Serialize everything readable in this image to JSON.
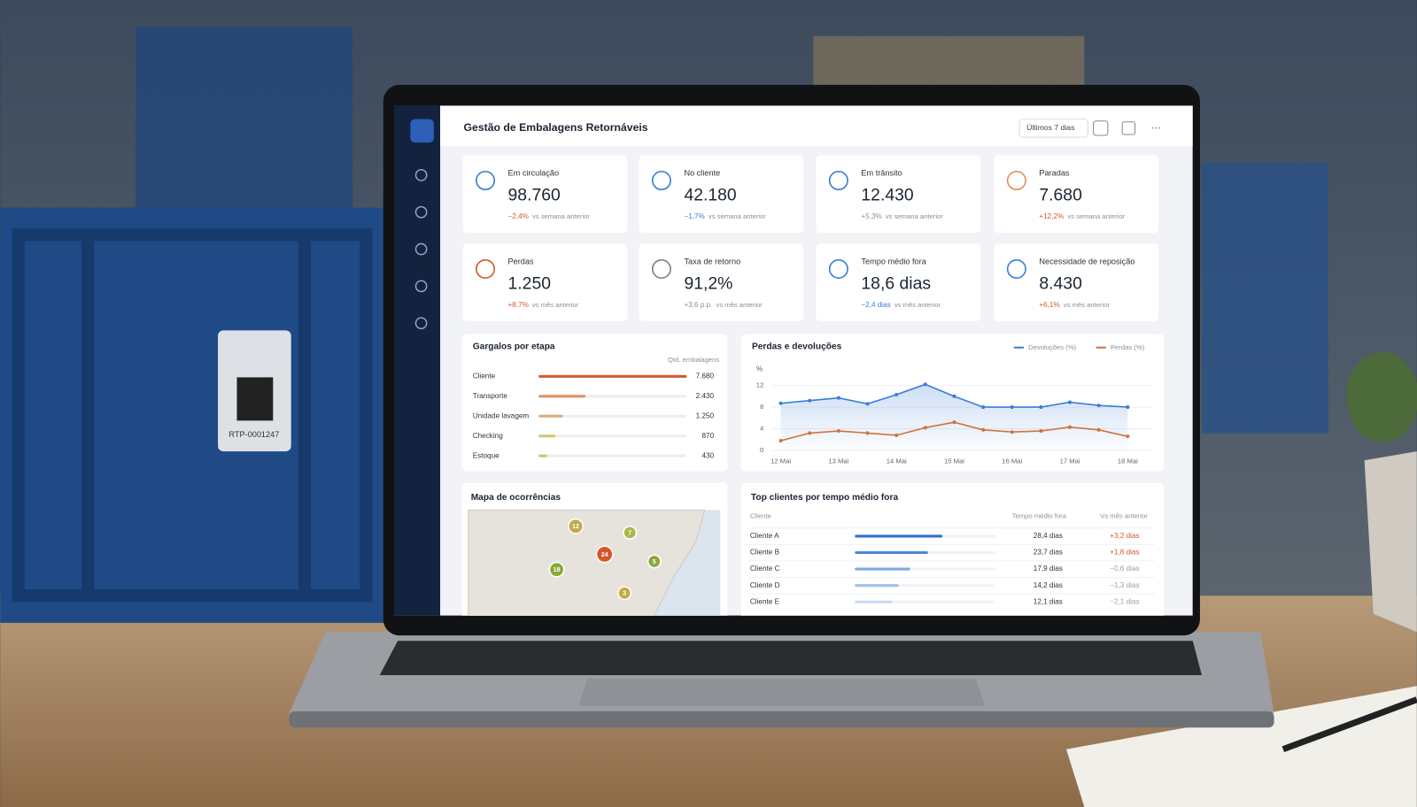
{
  "header": {
    "title": "Gestão de Embalagens Retornáveis",
    "period": "Últimos 7 dias"
  },
  "crate_label": "RTP-0001247",
  "kpis": [
    {
      "label": "Em circulação",
      "value": "98.760",
      "delta": "−2,4%",
      "comparison": "vs semana anterior",
      "color": "#d4572a",
      "icon_color": "#3b7dd8"
    },
    {
      "label": "No cliente",
      "value": "42.180",
      "delta": "−1,7%",
      "comparison": "vs semana anterior",
      "color": "#3b7dd8",
      "icon_color": "#3b7dd8"
    },
    {
      "label": "Em trânsito",
      "value": "12.430",
      "delta": "+5,3%",
      "comparison": "vs semana anterior",
      "color": "#8a8f98",
      "icon_color": "#3b7dd8"
    },
    {
      "label": "Paradas",
      "value": "7.680",
      "delta": "+12,2%",
      "comparison": "vs semana anterior",
      "color": "#d4572a",
      "icon_color": "#e0915f"
    },
    {
      "label": "Perdas",
      "value": "1.250",
      "delta": "+8,7%",
      "comparison": "vs mês anterior",
      "color": "#d4572a",
      "icon_color": "#d4572a"
    },
    {
      "label": "Taxa de retorno",
      "value": "91,2%",
      "delta": "+3,6 p.p.",
      "comparison": "vs mês anterior",
      "color": "#8a8f98",
      "icon_color": "#7a808a"
    },
    {
      "label": "Tempo médio fora",
      "value": "18,6 dias",
      "delta": "−2,4 dias",
      "comparison": "vs mês anterior",
      "color": "#3b7dd8",
      "icon_color": "#3b7dd8"
    },
    {
      "label": "Necessidade de reposição",
      "value": "8.430",
      "delta": "+6,1%",
      "comparison": "vs mês anterior",
      "color": "#d4572a",
      "icon_color": "#3b7dd8"
    }
  ],
  "chart_data": [
    {
      "type": "bar",
      "title": "Gargalos por etapa",
      "value_header": "Qtd. embalagens",
      "categories": [
        "Cliente",
        "Transporte",
        "Unidade lavagem",
        "Checking",
        "Estoque"
      ],
      "values": [
        7680,
        2430,
        1250,
        870,
        430
      ],
      "value_labels": [
        "7.680",
        "2.430",
        "1.250",
        "870",
        "430"
      ],
      "colors": [
        "#d4572a",
        "#e0915f",
        "#e0a87a",
        "#d4c46a",
        "#d4c46a"
      ]
    },
    {
      "type": "line",
      "title": "Perdas e devoluções",
      "y_label": "%",
      "categories": [
        "12 Mai",
        null,
        "13 Mai",
        null,
        "14 Mai",
        null,
        "15 Mai",
        null,
        "16 Mai",
        null,
        "17 Mai",
        null,
        "18 Mai"
      ],
      "series": [
        {
          "name": "Devoluções (%)",
          "color": "#3b7dd8",
          "values": [
            8.7,
            9.2,
            9.7,
            8.6,
            10.3,
            12.2,
            10.0,
            8.0,
            8.0,
            8.0,
            8.9,
            8.3,
            8.0
          ]
        },
        {
          "name": "Perdas (%)",
          "color": "#d0743c",
          "values": [
            1.8,
            3.2,
            3.6,
            3.2,
            2.8,
            4.2,
            5.2,
            3.8,
            3.4,
            3.6,
            4.3,
            3.8,
            2.6
          ]
        }
      ],
      "ylim": [
        0,
        13
      ],
      "yticks": [
        0,
        4,
        8,
        12
      ],
      "grid": true
    }
  ],
  "map": {
    "title": "Mapa de ocorrências",
    "markers": [
      {
        "label": "12",
        "color": "#c4a94a"
      },
      {
        "label": "7",
        "color": "#a8b84a"
      },
      {
        "label": "24",
        "color": "#d4572a"
      },
      {
        "label": "18",
        "color": "#8aa83a"
      },
      {
        "label": "5",
        "color": "#8aa83a"
      },
      {
        "label": "3",
        "color": "#c4a94a"
      }
    ]
  },
  "top_clients": {
    "title": "Top clientes por tempo médio fora",
    "columns": [
      "Cliente",
      "Tempo médio fora",
      "Vs mês anterior"
    ],
    "categories": [
      "Cliente A",
      "Cliente B",
      "Cliente C",
      "Cliente D",
      "Cliente E"
    ],
    "values": [
      28.4,
      23.7,
      17.9,
      14.2,
      12.1
    ],
    "value_labels": [
      "28,4 dias",
      "23,7 dias",
      "17,9 dias",
      "14,2 dias",
      "12,1 dias"
    ],
    "changes": [
      "+3,2 dias",
      "+1,8 dias",
      "−0,6 dias",
      "−1,3 dias",
      "−2,1 dias"
    ],
    "change_colors": [
      "#d4572a",
      "#d4572a",
      "#9aa0a8",
      "#9aa0a8",
      "#9aa0a8"
    ],
    "colors": [
      "#2f6fd0",
      "#4a86dc",
      "#7fa9e6",
      "#a3c1ee",
      "#c9daf5"
    ]
  }
}
